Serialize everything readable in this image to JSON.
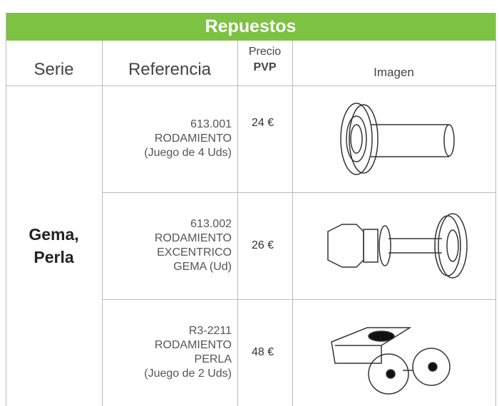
{
  "table": {
    "title": "Repuestos",
    "headers": {
      "serie": "Serie",
      "referencia": "Referencia",
      "precio": [
        "Precio",
        "PVP"
      ],
      "imagen": "Imagen"
    },
    "serie": [
      "Gema,",
      "Perla"
    ],
    "rows": [
      {
        "referencia": [
          "613.001",
          "RODAMIENTO",
          "(Juego de 4 Uds)"
        ],
        "precio": "24 €"
      },
      {
        "referencia": [
          "613.002",
          "RODAMIENTO",
          "EXCENTRICO",
          "GEMA (Ud)"
        ],
        "precio": "26 €"
      },
      {
        "referencia": [
          "R3-2211",
          "RODAMIENTO",
          "PERLA",
          "(Juego de 2 Uds)"
        ],
        "precio": "48 €"
      }
    ]
  }
}
